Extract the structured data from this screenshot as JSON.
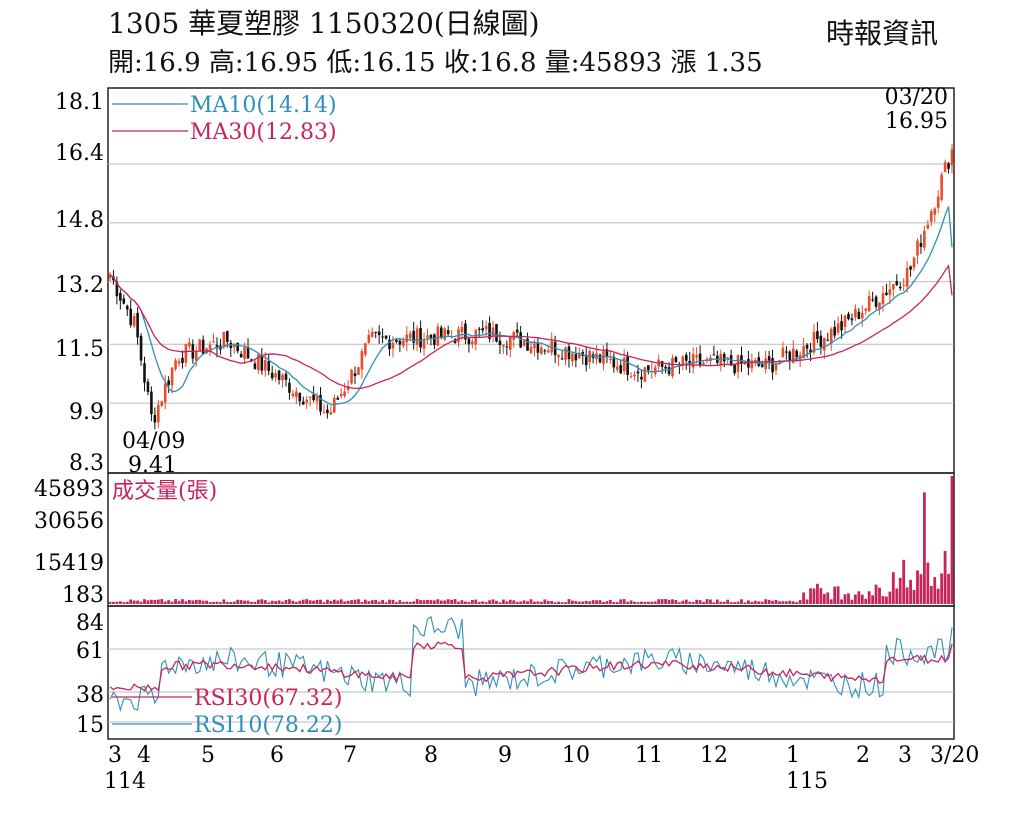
{
  "header": {
    "title": "1305  華夏塑膠 1150320(日線圖)",
    "quote": "開:16.9 高:16.95 低:16.15 收:16.8 量:45893 漲 1.35",
    "source": "時報資訊"
  },
  "price_panel": {
    "ticks": [
      "18.1",
      "16.4",
      "14.8",
      "13.2",
      "11.5",
      "9.9",
      "8.3"
    ],
    "ma10_label": "MA10(14.14)",
    "ma30_label": "MA30(12.83)",
    "high_date": "03/20",
    "high_value": "16.95",
    "low_date": "04/09",
    "low_value": "9.41"
  },
  "volume_panel": {
    "ticks": [
      "45893",
      "30656",
      "15419",
      "183"
    ],
    "title": "成交量(張)"
  },
  "rsi_panel": {
    "ticks": [
      "84",
      "61",
      "38",
      "15"
    ],
    "rsi30_label": "RSI30(67.32)",
    "rsi10_label": "RSI10(78.22)"
  },
  "x_axis": {
    "months": [
      "3",
      "4",
      "5",
      "6",
      "7",
      "8",
      "9",
      "10",
      "11",
      "12",
      "1",
      "2",
      "3",
      "3/20"
    ],
    "year_labels": [
      "114",
      "115"
    ]
  },
  "colors": {
    "up": "#e84c2a",
    "down": "#111111",
    "ma10": "#2f8fb8",
    "ma30": "#c8245c",
    "volume": "#c8245c",
    "rsi30": "#c8245c",
    "rsi10": "#2f8fb8",
    "grid": "#bbbbbb"
  },
  "chart_data": [
    {
      "type": "candlestick",
      "x_months": [
        "3",
        "4",
        "5",
        "6",
        "7",
        "8",
        "9",
        "10",
        "11",
        "12",
        "1",
        "2",
        "3",
        "3/20"
      ],
      "ylim": [
        8.3,
        18.1
      ],
      "grid": true,
      "close_keypoints": [
        {
          "x": "3",
          "close": 13.4
        },
        {
          "x": "4",
          "close": 12.0
        },
        {
          "x": "04/09",
          "close": 9.41
        },
        {
          "x": "5",
          "close": 11.2
        },
        {
          "x": "5",
          "close": 11.6
        },
        {
          "x": "6",
          "close": 10.6
        },
        {
          "x": "7",
          "close": 9.6
        },
        {
          "x": "8",
          "close": 11.6
        },
        {
          "x": "9",
          "close": 11.8
        },
        {
          "x": "10",
          "close": 11.3
        },
        {
          "x": "11",
          "close": 10.8
        },
        {
          "x": "12",
          "close": 11.0
        },
        {
          "x": "1",
          "close": 10.9
        },
        {
          "x": "2",
          "close": 12.0
        },
        {
          "x": "3",
          "close": 13.5
        },
        {
          "x": "3/20",
          "close": 16.8
        }
      ],
      "series": [
        {
          "name": "MA10(14.14)",
          "last": 14.14
        },
        {
          "name": "MA30(12.83)",
          "last": 12.83
        }
      ],
      "annotations": [
        {
          "date": "03/20",
          "value": 16.95
        },
        {
          "date": "04/09",
          "value": 9.41
        }
      ]
    },
    {
      "type": "bar",
      "title": "成交量(張)",
      "ylim": [
        183,
        45893
      ],
      "last": 45893
    },
    {
      "type": "line",
      "ylim": [
        15,
        84
      ],
      "series": [
        {
          "name": "RSI30(67.32)",
          "last": 67.32
        },
        {
          "name": "RSI10(78.22)",
          "last": 78.22
        }
      ]
    }
  ]
}
